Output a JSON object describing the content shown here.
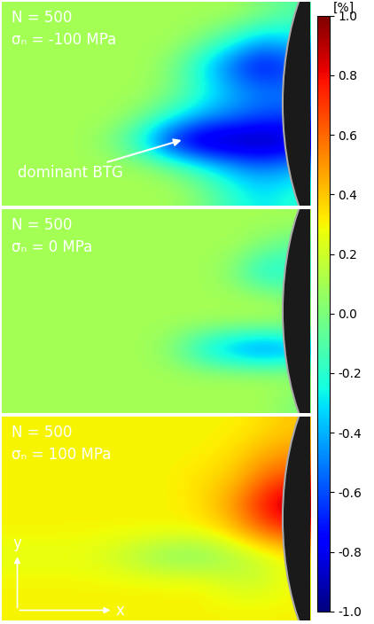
{
  "chart_data": [
    {
      "type": "heatmap",
      "title": "N = 500",
      "subtitle": "σₙ = -100 MPa",
      "annotation": "dominant BTG",
      "tick_labels": false,
      "cells": [
        [
          0.1,
          0.1,
          0.1,
          0.1,
          0.1,
          0.1,
          0.1,
          0.1,
          0.0,
          -0.1
        ],
        [
          0.1,
          0.1,
          0.1,
          0.1,
          0.1,
          0.1,
          0.0,
          -0.2,
          -0.4,
          -0.3
        ],
        [
          0.1,
          0.1,
          0.1,
          0.1,
          0.1,
          0.0,
          -0.3,
          -0.6,
          -0.8,
          -0.6
        ],
        [
          0.1,
          0.1,
          0.1,
          0.1,
          0.1,
          0.0,
          -0.2,
          -0.4,
          -0.5,
          -0.5
        ],
        [
          0.1,
          0.1,
          0.1,
          0.1,
          0.0,
          -0.2,
          -0.4,
          -0.5,
          -0.6,
          -0.6
        ],
        [
          0.1,
          0.1,
          0.1,
          0.0,
          -0.3,
          -0.8,
          -1.0,
          -1.0,
          -1.0,
          -0.9
        ],
        [
          0.1,
          0.1,
          0.1,
          0.1,
          0.1,
          0.0,
          -0.2,
          -0.4,
          -0.5,
          -0.4
        ],
        [
          0.1,
          0.1,
          0.1,
          0.1,
          0.1,
          0.1,
          0.0,
          -0.2,
          -0.3,
          -0.2
        ]
      ]
    },
    {
      "type": "heatmap",
      "title": "N = 500",
      "subtitle": "σₙ = 0 MPa",
      "tick_labels": false,
      "cells": [
        [
          0.1,
          0.1,
          0.1,
          0.1,
          0.1,
          0.1,
          0.1,
          0.1,
          0.1,
          0.1
        ],
        [
          0.1,
          0.1,
          0.1,
          0.1,
          0.1,
          0.1,
          0.1,
          0.1,
          0.0,
          -0.1
        ],
        [
          0.1,
          0.1,
          0.1,
          0.1,
          0.1,
          0.1,
          0.1,
          0.0,
          -0.3,
          -0.2
        ],
        [
          0.1,
          0.1,
          0.1,
          0.1,
          0.1,
          0.1,
          0.1,
          0.1,
          0.1,
          0.0
        ],
        [
          0.1,
          0.1,
          0.1,
          0.1,
          0.1,
          0.1,
          0.1,
          0.1,
          0.1,
          0.1
        ],
        [
          0.1,
          0.1,
          0.1,
          0.1,
          0.1,
          0.0,
          -0.3,
          -0.5,
          -0.6,
          -0.5
        ],
        [
          0.1,
          0.1,
          0.1,
          0.1,
          0.1,
          0.1,
          0.1,
          0.1,
          0.1,
          0.1
        ],
        [
          0.1,
          0.1,
          0.1,
          0.1,
          0.1,
          0.1,
          0.1,
          0.1,
          0.1,
          0.0
        ]
      ]
    },
    {
      "type": "heatmap",
      "title": "N = 500",
      "subtitle": "σₙ = 100 MPa",
      "xlabel": "x",
      "ylabel": "y",
      "tick_labels": false,
      "cells": [
        [
          0.3,
          0.3,
          0.3,
          0.3,
          0.3,
          0.3,
          0.3,
          0.3,
          0.35,
          0.4
        ],
        [
          0.3,
          0.3,
          0.3,
          0.3,
          0.3,
          0.3,
          0.3,
          0.35,
          0.45,
          0.5
        ],
        [
          0.3,
          0.3,
          0.3,
          0.3,
          0.3,
          0.3,
          0.35,
          0.4,
          0.6,
          0.7
        ],
        [
          0.3,
          0.3,
          0.3,
          0.3,
          0.3,
          0.3,
          0.35,
          0.5,
          0.8,
          1.0
        ],
        [
          0.3,
          0.3,
          0.3,
          0.3,
          0.3,
          0.3,
          0.3,
          0.4,
          0.6,
          0.7
        ],
        [
          0.25,
          0.25,
          0.25,
          0.2,
          0.1,
          0.0,
          0.0,
          0.1,
          0.2,
          0.3
        ],
        [
          0.3,
          0.3,
          0.3,
          0.3,
          0.3,
          0.3,
          0.3,
          0.2,
          0.2,
          0.3
        ],
        [
          0.3,
          0.3,
          0.3,
          0.3,
          0.3,
          0.3,
          0.3,
          0.3,
          0.3,
          0.3
        ]
      ]
    }
  ],
  "colorbar": {
    "label": "[%]",
    "range": [
      -1.0,
      1.0
    ],
    "ticks": [
      {
        "value": 1.0,
        "label": "1.0"
      },
      {
        "value": 0.8,
        "label": "0.8"
      },
      {
        "value": 0.6,
        "label": "0.6"
      },
      {
        "value": 0.4,
        "label": "0.4"
      },
      {
        "value": 0.2,
        "label": "0.2"
      },
      {
        "value": 0.0,
        "label": "0.0"
      },
      {
        "value": -0.2,
        "label": "-0.2"
      },
      {
        "value": -0.4,
        "label": "-0.4"
      },
      {
        "value": -0.6,
        "label": "-0.6"
      },
      {
        "value": -0.8,
        "label": "-0.8"
      },
      {
        "value": -1.0,
        "label": "-1.0"
      }
    ]
  }
}
